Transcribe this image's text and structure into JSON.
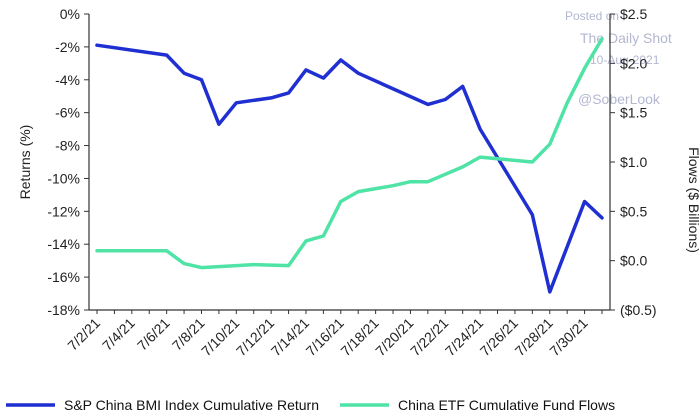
{
  "chart_data": {
    "type": "line",
    "x": [
      "7/2/21",
      "7/3/21",
      "7/4/21",
      "7/5/21",
      "7/6/21",
      "7/7/21",
      "7/8/21",
      "7/9/21",
      "7/10/21",
      "7/11/21",
      "7/12/21",
      "7/13/21",
      "7/14/21",
      "7/15/21",
      "7/16/21",
      "7/17/21",
      "7/18/21",
      "7/19/21",
      "7/20/21",
      "7/21/21",
      "7/22/21",
      "7/23/21",
      "7/24/21",
      "7/25/21",
      "7/26/21",
      "7/27/21",
      "7/28/21",
      "7/29/21",
      "7/30/21",
      "7/31/21"
    ],
    "x_tick_labels": [
      "7/2/21",
      "7/4/21",
      "7/6/21",
      "7/8/21",
      "7/10/21",
      "7/12/21",
      "7/14/21",
      "7/16/21",
      "7/18/21",
      "7/20/21",
      "7/22/21",
      "7/24/21",
      "7/26/21",
      "7/28/21",
      "7/30/21"
    ],
    "left_axis": {
      "label": "Returns (%)",
      "ylim": [
        -18,
        0
      ],
      "ticks": [
        0,
        -2,
        -4,
        -6,
        -8,
        -10,
        -12,
        -14,
        -16,
        -18
      ],
      "tick_labels": [
        "0%",
        "-2%",
        "-4%",
        "-6%",
        "-8%",
        "-10%",
        "-12%",
        "-14%",
        "-16%",
        "-18%"
      ]
    },
    "right_axis": {
      "label": "Flows ($ Billions)",
      "ylim": [
        -0.5,
        2.5
      ],
      "ticks": [
        2.5,
        2.0,
        1.5,
        1.0,
        0.5,
        0.0,
        -0.5
      ],
      "tick_labels": [
        "$2.5",
        "$2.0",
        "$1.5",
        "$1.0",
        "$0.5",
        "$0.0",
        "($0.5)"
      ],
      "negative_tick_color": "#e0432f"
    },
    "series": [
      {
        "name": "S&P China BMI Index Cumulative Return",
        "axis": "left",
        "color": "#1f2fd2",
        "points": [
          {
            "x": "7/2/21",
            "y": -1.9
          },
          {
            "x": "7/6/21",
            "y": -2.5
          },
          {
            "x": "7/7/21",
            "y": -3.6
          },
          {
            "x": "7/8/21",
            "y": -4.0
          },
          {
            "x": "7/9/21",
            "y": -6.7
          },
          {
            "x": "7/10/21",
            "y": -5.4
          },
          {
            "x": "7/12/21",
            "y": -5.1
          },
          {
            "x": "7/13/21",
            "y": -4.8
          },
          {
            "x": "7/14/21",
            "y": -3.4
          },
          {
            "x": "7/15/21",
            "y": -3.9
          },
          {
            "x": "7/16/21",
            "y": -2.8
          },
          {
            "x": "7/17/21",
            "y": -3.6
          },
          {
            "x": "7/21/21",
            "y": -5.5
          },
          {
            "x": "7/22/21",
            "y": -5.2
          },
          {
            "x": "7/23/21",
            "y": -4.4
          },
          {
            "x": "7/24/21",
            "y": -7.0
          },
          {
            "x": "7/27/21",
            "y": -12.2
          },
          {
            "x": "7/28/21",
            "y": -16.9
          },
          {
            "x": "7/30/21",
            "y": -11.4
          },
          {
            "x": "7/31/21",
            "y": -12.4
          }
        ]
      },
      {
        "name": "China ETF Cumulative Fund Flows",
        "axis": "right",
        "color": "#4fe3a6",
        "points": [
          {
            "x": "7/2/21",
            "y": 0.1
          },
          {
            "x": "7/6/21",
            "y": 0.1
          },
          {
            "x": "7/7/21",
            "y": -0.03
          },
          {
            "x": "7/8/21",
            "y": -0.07
          },
          {
            "x": "7/9/21",
            "y": -0.06
          },
          {
            "x": "7/11/21",
            "y": -0.04
          },
          {
            "x": "7/13/21",
            "y": -0.05
          },
          {
            "x": "7/14/21",
            "y": 0.2
          },
          {
            "x": "7/15/21",
            "y": 0.25
          },
          {
            "x": "7/16/21",
            "y": 0.6
          },
          {
            "x": "7/17/21",
            "y": 0.7
          },
          {
            "x": "7/19/21",
            "y": 0.76
          },
          {
            "x": "7/20/21",
            "y": 0.8
          },
          {
            "x": "7/21/21",
            "y": 0.8
          },
          {
            "x": "7/23/21",
            "y": 0.95
          },
          {
            "x": "7/24/21",
            "y": 1.05
          },
          {
            "x": "7/27/21",
            "y": 1.0
          },
          {
            "x": "7/28/21",
            "y": 1.18
          },
          {
            "x": "7/29/21",
            "y": 1.6
          },
          {
            "x": "7/30/21",
            "y": 1.95
          },
          {
            "x": "7/31/21",
            "y": 2.25
          }
        ]
      }
    ],
    "legend_position": "bottom",
    "grid": false,
    "watermark_lines": [
      "Posted on",
      "The Daily Shot",
      "10-Aug-2021",
      "@SoberLook"
    ]
  }
}
